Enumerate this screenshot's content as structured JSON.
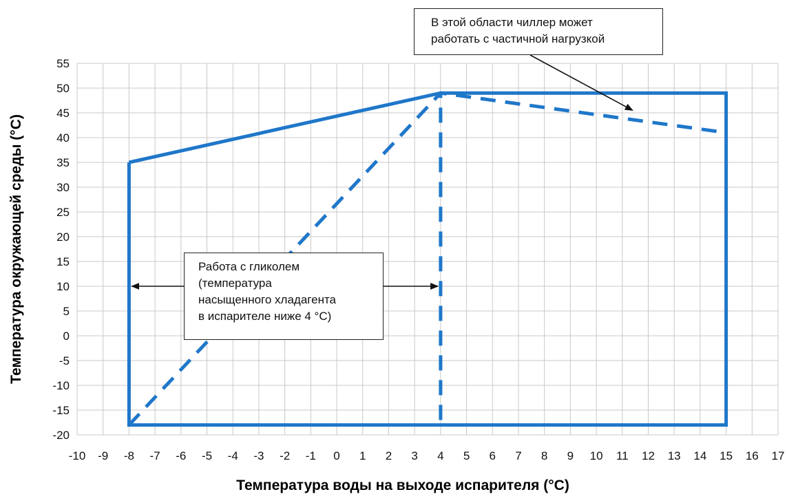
{
  "chart_data": {
    "type": "line",
    "title": "",
    "xlabel": "Температура воды на выходе испарителя (°C)",
    "ylabel": "Температура окружающей среды (°C)",
    "xlim": [
      -10,
      17
    ],
    "ylim": [
      -20,
      55
    ],
    "x_ticks": [
      -10,
      -9,
      -8,
      -7,
      -6,
      -5,
      -4,
      -3,
      -2,
      -1,
      0,
      1,
      2,
      3,
      4,
      5,
      6,
      7,
      8,
      9,
      10,
      11,
      12,
      13,
      14,
      15,
      16,
      17
    ],
    "y_ticks": [
      -20,
      -15,
      -10,
      -5,
      0,
      5,
      10,
      15,
      20,
      25,
      30,
      35,
      40,
      45,
      50,
      55
    ],
    "grid": true,
    "series": [
      {
        "style": "solid",
        "color": "#1f77c9",
        "x": [
          -8,
          4,
          15,
          15,
          -8,
          -8
        ],
        "y": [
          35,
          49,
          49,
          -18,
          -18,
          35
        ]
      },
      {
        "style": "dashed",
        "color": "#1f77c9",
        "x": [
          -8,
          4,
          15
        ],
        "y": [
          -18,
          49,
          41
        ]
      },
      {
        "style": "dashed",
        "color": "#1f77c9",
        "x": [
          4,
          4
        ],
        "y": [
          -17,
          49
        ]
      }
    ],
    "annotations": [
      {
        "id": "partial-load",
        "lines": [
          "В этой области чиллер может",
          "работать с частичной нагрузкой"
        ],
        "arrow_to": [
          11.4,
          45.5
        ]
      },
      {
        "id": "glycol",
        "lines": [
          "Работа с гликолем",
          "(температура",
          "насыщенного  хладагента",
          "в испарителе ниже 4 °C)"
        ],
        "arrows_to": [
          [
            -7.9,
            10
          ],
          [
            3.9,
            10
          ]
        ]
      }
    ]
  }
}
